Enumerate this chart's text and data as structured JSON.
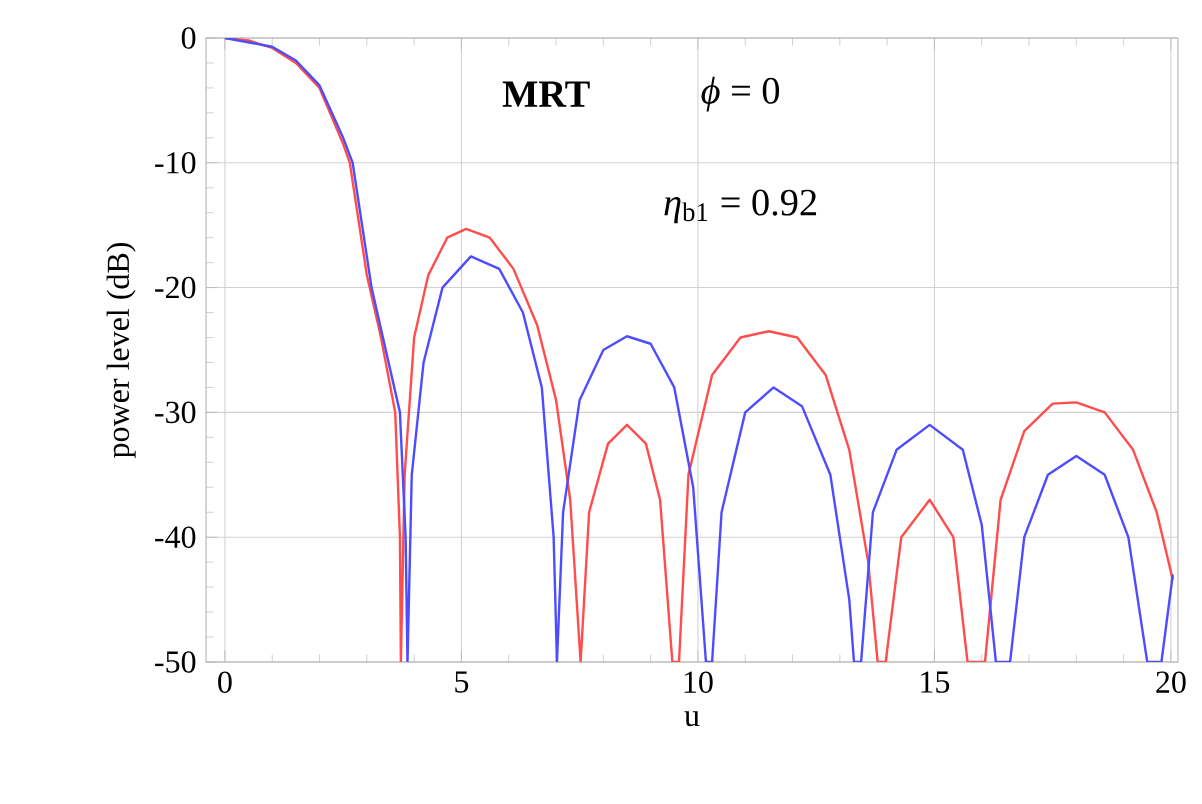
{
  "chart_data": {
    "type": "line",
    "xlabel": "u",
    "ylabel": "power level (dB)",
    "annotations": [
      "**MRT**",
      "*ϕ* = 0",
      "*η*$_{b1}$ = 0.92"
    ],
    "xlim": [
      -0.4,
      20.15
    ],
    "ylim": [
      -50,
      0
    ],
    "xticks": [
      0,
      5,
      10,
      15,
      20
    ],
    "yticks": [
      0,
      -10,
      -20,
      -30,
      -40,
      -50
    ],
    "grid": true,
    "line_style": "solid",
    "marker": "none",
    "series": [
      {
        "color": "#ff4d4d",
        "x": [
          0,
          0.5,
          1,
          1.5,
          2,
          2.5,
          2.64,
          3.0,
          3.3,
          3.6,
          3.7,
          3.72,
          3.8,
          4.0,
          4.3,
          4.7,
          5.1,
          5.6,
          6.1,
          6.6,
          7.0,
          7.3,
          7.52,
          7.7,
          8.1,
          8.5,
          8.9,
          9.2,
          9.46,
          9.6,
          9.8,
          10.3,
          10.9,
          11.5,
          12.1,
          12.7,
          13.2,
          13.6,
          13.8,
          13.97,
          14.3,
          14.9,
          15.4,
          15.7,
          16.07,
          16.4,
          16.9,
          17.5,
          18.0,
          18.6,
          19.2,
          19.7,
          20.04
        ],
        "values": [
          0,
          -0.2,
          -0.8,
          -2,
          -4,
          -8.5,
          -10,
          -19,
          -24,
          -30,
          -40,
          -50,
          -35,
          -24,
          -19,
          -16,
          -15.3,
          -16,
          -18.5,
          -23,
          -29,
          -37,
          -50,
          -38,
          -32.5,
          -31,
          -32.5,
          -37,
          -50,
          -50,
          -35,
          -27,
          -24,
          -23.5,
          -24,
          -27,
          -33,
          -42,
          -50,
          -50,
          -40,
          -37,
          -40,
          -50,
          -50,
          -37,
          -31.5,
          -29.3,
          -29.2,
          -30,
          -33,
          -38,
          -43.4
        ]
      },
      {
        "color": "#4d4dff",
        "x": [
          0,
          1,
          1.5,
          2,
          2.5,
          2.7,
          3.1,
          3.4,
          3.7,
          3.82,
          3.86,
          3.95,
          4.2,
          4.6,
          5.2,
          5.8,
          6.3,
          6.7,
          6.95,
          7.02,
          7.15,
          7.5,
          8.0,
          8.5,
          9.0,
          9.5,
          9.9,
          10.17,
          10.3,
          10.5,
          11.0,
          11.6,
          12.2,
          12.8,
          13.2,
          13.3,
          13.45,
          13.7,
          14.2,
          14.9,
          15.6,
          16.0,
          16.3,
          16.6,
          16.9,
          17.4,
          18.0,
          18.6,
          19.1,
          19.5,
          19.8,
          20.04
        ],
        "values": [
          0,
          -0.7,
          -1.8,
          -3.8,
          -8,
          -10,
          -20,
          -25,
          -30,
          -40,
          -50,
          -35,
          -26,
          -20,
          -17.5,
          -18.5,
          -22,
          -28,
          -40,
          -50,
          -38,
          -29,
          -25,
          -23.9,
          -24.5,
          -28,
          -36,
          -50,
          -50,
          -38,
          -30,
          -28,
          -29.5,
          -35,
          -45,
          -50,
          -50,
          -38,
          -33,
          -31,
          -33,
          -39,
          -50,
          -50,
          -40,
          -35,
          -33.5,
          -35,
          -40,
          -50,
          -50,
          -43
        ]
      }
    ]
  }
}
